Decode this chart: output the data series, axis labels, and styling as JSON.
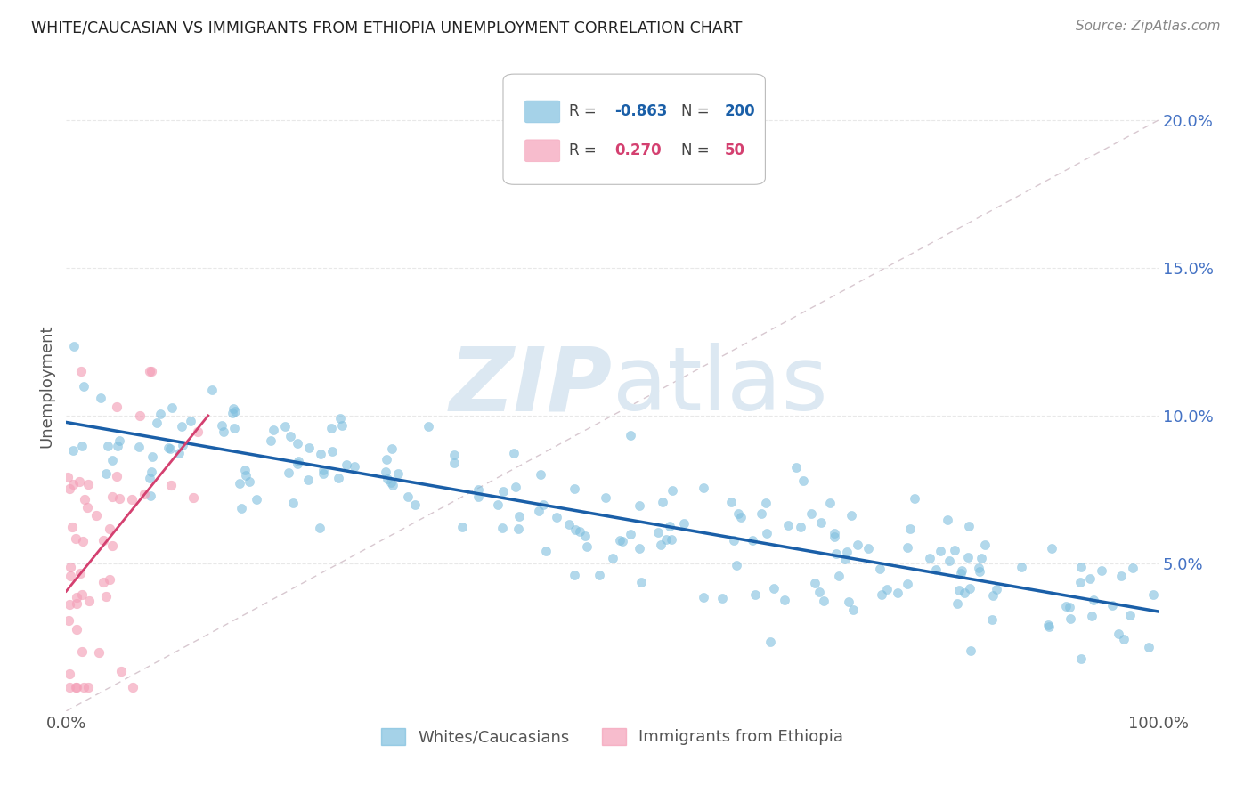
{
  "title": "WHITE/CAUCASIAN VS IMMIGRANTS FROM ETHIOPIA UNEMPLOYMENT CORRELATION CHART",
  "source": "Source: ZipAtlas.com",
  "ylabel": "Unemployment",
  "blue_color": "#7fbfdf",
  "pink_color": "#f4a0b8",
  "blue_line_color": "#1a5fa8",
  "pink_line_color": "#d44070",
  "diagonal_color": "#d8c8d0",
  "watermark_zip": "ZIP",
  "watermark_atlas": "atlas",
  "watermark_color": "#dce8f2",
  "bg_color": "#ffffff",
  "grid_color": "#e8e8e8",
  "title_color": "#222222",
  "axis_label_color": "#555555",
  "right_tick_color": "#4472c4",
  "legend_label_color": "#444444",
  "source_color": "#888888",
  "seed": 99
}
